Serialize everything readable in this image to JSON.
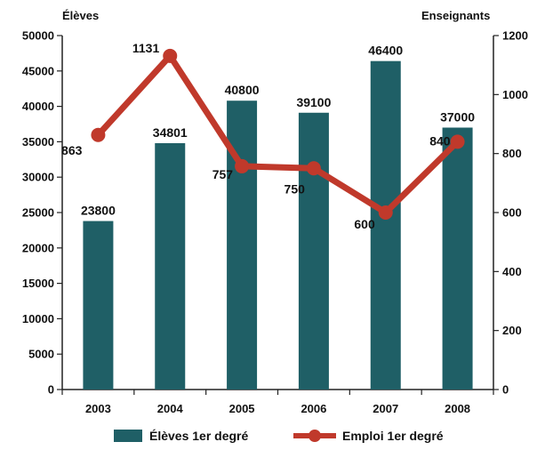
{
  "chart_data": {
    "type": "bar+line",
    "categories": [
      "2003",
      "2004",
      "2005",
      "2006",
      "2007",
      "2008"
    ],
    "y_left": {
      "label": "Élèves",
      "ylim": [
        0,
        50000
      ],
      "ticks": [
        "0",
        "5000",
        "10000",
        "15000",
        "20000",
        "25000",
        "30000",
        "35000",
        "40000",
        "45000",
        "50000"
      ]
    },
    "y_right": {
      "label": "Enseignants",
      "ylim": [
        0,
        1200
      ],
      "ticks": [
        "0",
        "200",
        "400",
        "600",
        "800",
        "1000",
        "1200"
      ]
    },
    "series": [
      {
        "name": "Élèves 1er degré",
        "type": "bar",
        "axis": "left",
        "values": [
          23800,
          34801,
          40800,
          39100,
          46400,
          37000
        ],
        "labels": [
          "23800",
          "34801",
          "40800",
          "39100",
          "46400",
          "37000"
        ],
        "color": "#1f5f66"
      },
      {
        "name": "Emploi 1er degré",
        "type": "line",
        "axis": "right",
        "values": [
          863,
          1131,
          757,
          750,
          600,
          840
        ],
        "labels": [
          "863",
          "1131",
          "757",
          "750",
          "600",
          "840"
        ],
        "color": "#c0392b"
      }
    ],
    "grid": false,
    "legend": "bottom"
  }
}
